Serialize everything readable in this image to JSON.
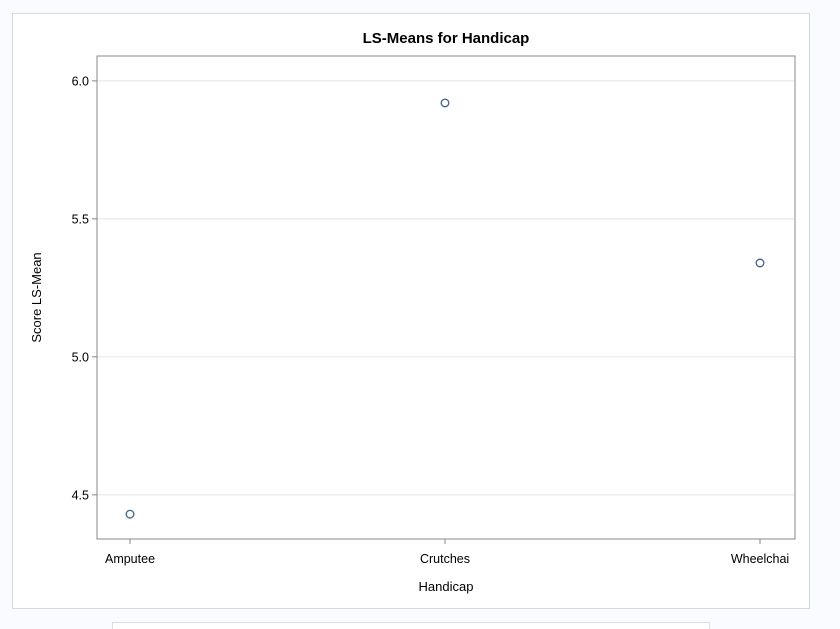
{
  "chart_data": {
    "type": "scatter",
    "title": "LS-Means for Handicap",
    "xlabel": "Handicap",
    "ylabel": "Score LS-Mean",
    "categories": [
      "Amputee",
      "Crutches",
      "Wheelchai"
    ],
    "values": [
      4.43,
      5.92,
      5.34
    ],
    "ylim": [
      4.34,
      6.09
    ],
    "yticks": [
      "4.5",
      "5.0",
      "5.5",
      "6.0"
    ],
    "grid": "horizontal",
    "legend": "none",
    "colors": {
      "marker": "#44608f",
      "grid": "#e3e5ea",
      "frame": "#888888"
    }
  }
}
